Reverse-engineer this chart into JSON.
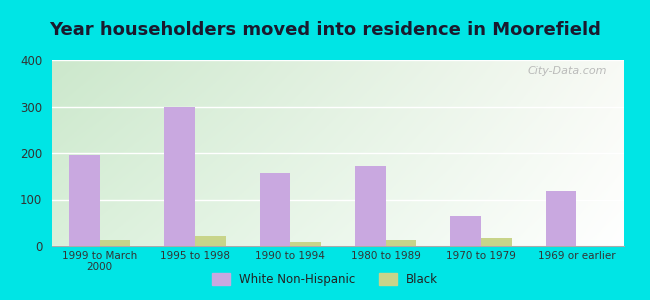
{
  "title": "Year householders moved into residence in Moorefield",
  "categories": [
    "1999 to March\n2000",
    "1995 to 1998",
    "1990 to 1994",
    "1980 to 1989",
    "1970 to 1979",
    "1969 or earlier"
  ],
  "white_values": [
    195,
    300,
    158,
    173,
    65,
    118
  ],
  "black_values": [
    13,
    22,
    9,
    13,
    18,
    0
  ],
  "white_color": "#c9a8e0",
  "black_color": "#c8d48a",
  "ylim": [
    0,
    400
  ],
  "yticks": [
    0,
    100,
    200,
    300,
    400
  ],
  "background_outer": "#00e5e5",
  "title_fontsize": 13,
  "bar_width": 0.32,
  "watermark": "City-Data.com",
  "grad_top_left": "#cce8cc",
  "grad_top_right": "#f8faf5",
  "grad_bottom_left": "#daf0da",
  "grad_bottom_right": "#ffffff"
}
